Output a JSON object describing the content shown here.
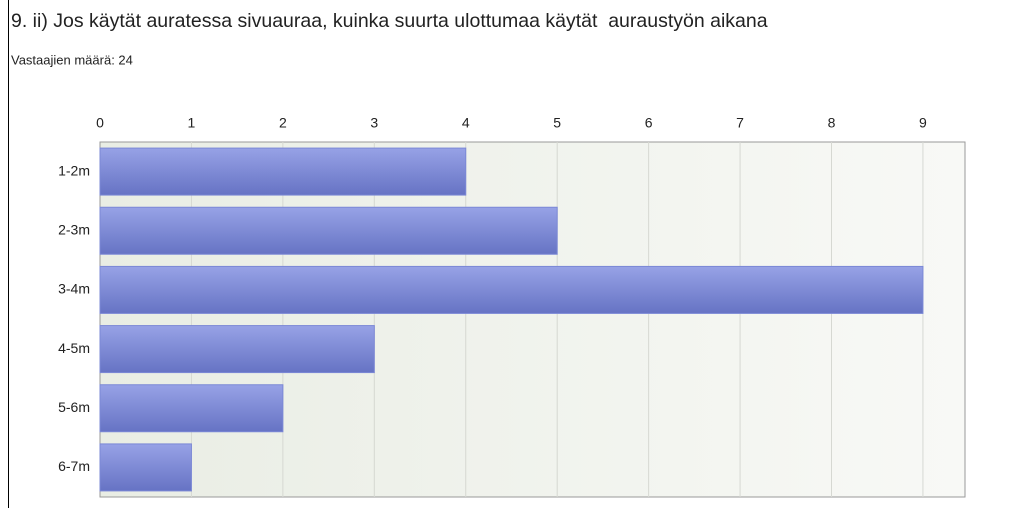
{
  "chart_data": {
    "type": "bar",
    "orientation": "horizontal",
    "title": "9. ii) Jos käytät auratessa sivuauraa, kuinka suurta ulottumaa käytät  auraustyön aikana",
    "subtitle": "Vastaajien määrä: 24",
    "categories": [
      "1-2m",
      "2-3m",
      "3-4m",
      "4-5m",
      "5-6m",
      "6-7m"
    ],
    "values": [
      4,
      5,
      9,
      3,
      2,
      1
    ],
    "color": "#7b88d6",
    "xlim": [
      0,
      9.46
    ],
    "xticks": [
      0,
      1,
      2,
      3,
      4,
      5,
      6,
      7,
      8,
      9
    ],
    "grid": true
  }
}
